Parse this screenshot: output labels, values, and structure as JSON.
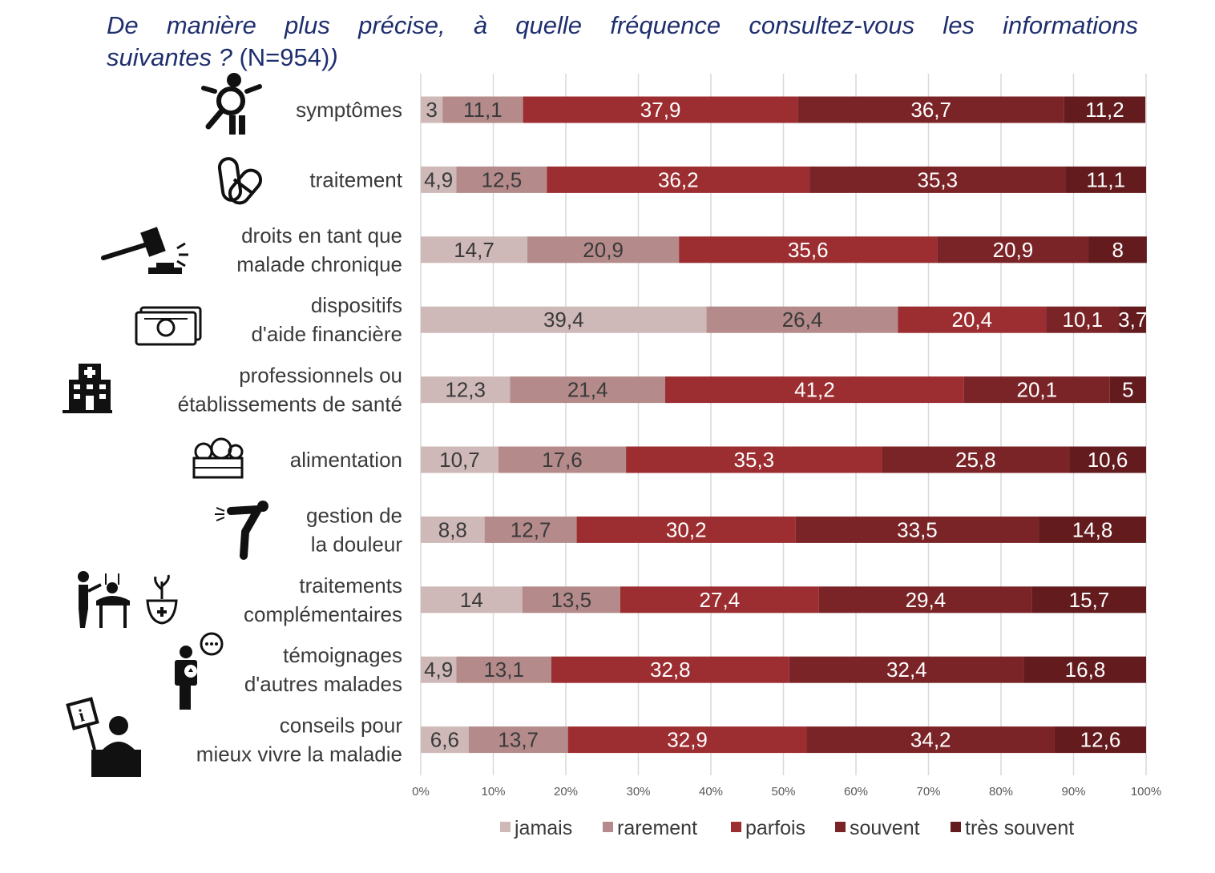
{
  "title": {
    "line1": "De manière plus précise, à quelle fréquence consultez-vous les informations",
    "line2": "suivantes ?",
    "n": "(N=954)",
    "close_paren": ")"
  },
  "colors": {
    "jamais": "#cfb8b8",
    "rarement": "#b48a8a",
    "parfois": "#9c2d30",
    "souvent": "#7b2427",
    "tres_souvent": "#631b1e",
    "title": "#1f2f6e",
    "grid": "#d9d9d9"
  },
  "icons": [
    "person-search-icon",
    "pills-icon",
    "gavel-icon",
    "money-icon",
    "hospital-icon",
    "food-crate-icon",
    "back-pain-icon",
    "acupuncture-herbal-icon",
    "patient-testimony-icon",
    "info-desk-icon"
  ],
  "chart_data": {
    "type": "bar",
    "orientation": "horizontal",
    "stacked": "percent",
    "categories": [
      [
        "symptômes"
      ],
      [
        "traitement"
      ],
      [
        "droits en tant que",
        "malade chronique"
      ],
      [
        "dispositifs",
        "d'aide financière"
      ],
      [
        "professionnels ou",
        "établissements de santé"
      ],
      [
        "alimentation"
      ],
      [
        "gestion de",
        "la douleur"
      ],
      [
        "traitements",
        "complémentaires"
      ],
      [
        "témoignages",
        "d'autres malades"
      ],
      [
        "conseils pour",
        "mieux vivre la maladie"
      ]
    ],
    "series": [
      {
        "name": "jamais",
        "values": [
          3,
          4.9,
          14.7,
          39.4,
          12.3,
          10.7,
          8.8,
          14,
          4.9,
          6.6
        ],
        "labels": [
          "3",
          "4,9",
          "14,7",
          "39,4",
          "12,3",
          "10,7",
          "8,8",
          "14",
          "4,9",
          "6,6"
        ]
      },
      {
        "name": "rarement",
        "values": [
          11.1,
          12.5,
          20.9,
          26.4,
          21.4,
          17.6,
          12.7,
          13.5,
          13.1,
          13.7
        ],
        "labels": [
          "11,1",
          "12,5",
          "20,9",
          "26,4",
          "21,4",
          "17,6",
          "12,7",
          "13,5",
          "13,1",
          "13,7"
        ]
      },
      {
        "name": "parfois",
        "values": [
          37.9,
          36.2,
          35.6,
          20.4,
          41.2,
          35.3,
          30.2,
          27.4,
          32.8,
          32.9
        ],
        "labels": [
          "37,9",
          "36,2",
          "35,6",
          "20,4",
          "41,2",
          "35,3",
          "30,2",
          "27,4",
          "32,8",
          "32,9"
        ]
      },
      {
        "name": "souvent",
        "values": [
          36.7,
          35.3,
          20.9,
          10.1,
          20.1,
          25.8,
          33.5,
          29.4,
          32.4,
          34.2
        ],
        "labels": [
          "36,7",
          "35,3",
          "20,9",
          "10,1",
          "20,1",
          "25,8",
          "33,5",
          "29,4",
          "32,4",
          "34,2"
        ]
      },
      {
        "name": "très souvent",
        "values": [
          11.2,
          11.1,
          8,
          3.7,
          5,
          10.6,
          14.8,
          15.7,
          16.8,
          12.6
        ],
        "labels": [
          "11,2",
          "11,1",
          "8",
          "3,7",
          "5",
          "10,6",
          "14,8",
          "15,7",
          "16,8",
          "12,6"
        ]
      }
    ],
    "xlim": [
      0,
      100
    ],
    "xticks": [
      "0%",
      "10%",
      "20%",
      "30%",
      "40%",
      "50%",
      "60%",
      "70%",
      "80%",
      "90%",
      "100%"
    ],
    "grid": true,
    "legend": "bottom"
  }
}
